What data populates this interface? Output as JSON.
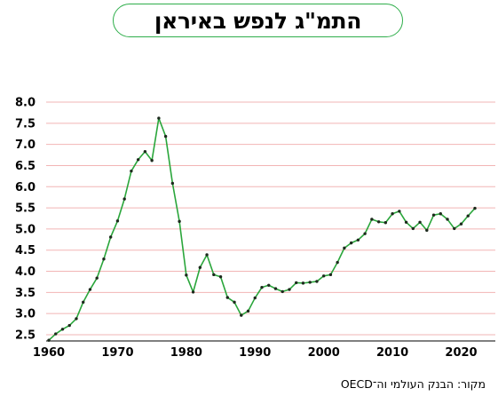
{
  "title": "התמ\"ג לנפש באיראן",
  "source": "מקור: הבנק העולמי וה־OECD",
  "colors": {
    "line": "#2aa63b",
    "point": "#1d2a1d",
    "grid": "#f2b5b5",
    "accent": "#2fae4b"
  },
  "chart_data": {
    "type": "line",
    "title": "התמ\"ג לנפש באיראן",
    "xlabel": "",
    "ylabel": "",
    "xlim": [
      1960,
      2022
    ],
    "ylim": [
      2.5,
      8.0
    ],
    "grid": true,
    "y_ticks": [
      "2.5",
      "3.0",
      "3.5",
      "4.0",
      "4.5",
      "5.0",
      "5.5",
      "6.0",
      "6.5",
      "7.0",
      "7.5",
      "8.0"
    ],
    "x_ticks": [
      "1960",
      "1970",
      "1980",
      "1990",
      "2000",
      "2010",
      "2020"
    ],
    "x": [
      1960,
      1961,
      1962,
      1963,
      1964,
      1965,
      1966,
      1967,
      1968,
      1969,
      1970,
      1971,
      1972,
      1973,
      1974,
      1975,
      1976,
      1977,
      1978,
      1979,
      1980,
      1981,
      1982,
      1983,
      1984,
      1985,
      1986,
      1987,
      1988,
      1989,
      1990,
      1991,
      1992,
      1993,
      1994,
      1995,
      1996,
      1997,
      1998,
      1999,
      2000,
      2001,
      2002,
      2003,
      2004,
      2005,
      2006,
      2007,
      2008,
      2009,
      2010,
      2011,
      2012,
      2013,
      2014,
      2015,
      2016,
      2017,
      2018,
      2019,
      2020,
      2021,
      2022
    ],
    "values": [
      2.37,
      2.52,
      2.63,
      2.72,
      2.88,
      3.27,
      3.57,
      3.84,
      4.29,
      4.81,
      5.19,
      5.71,
      6.37,
      6.64,
      6.83,
      6.62,
      7.62,
      7.19,
      6.08,
      5.18,
      3.91,
      3.51,
      4.09,
      4.39,
      3.92,
      3.87,
      3.38,
      3.27,
      2.96,
      3.06,
      3.37,
      3.62,
      3.67,
      3.59,
      3.52,
      3.57,
      3.73,
      3.72,
      3.74,
      3.76,
      3.89,
      3.92,
      4.21,
      4.55,
      4.67,
      4.74,
      4.89,
      5.23,
      5.17,
      5.15,
      5.36,
      5.42,
      5.16,
      5.01,
      5.16,
      4.97,
      5.33,
      5.36,
      5.23,
      5.01,
      5.12,
      5.31,
      5.49
    ]
  }
}
